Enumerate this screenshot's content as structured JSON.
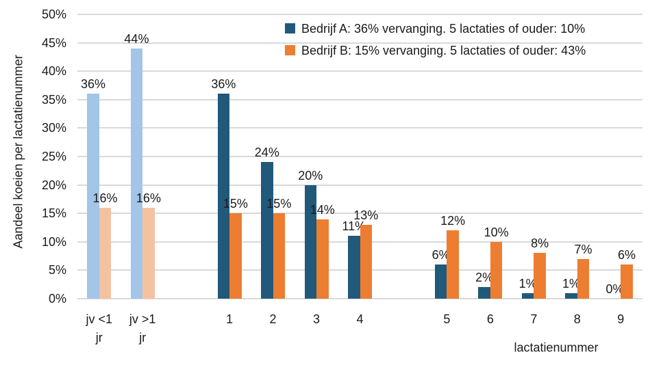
{
  "chart_data": {
    "type": "bar",
    "title": "",
    "ylabel": "Aandeel koeien per lactatienummer",
    "xlabel": "lactatienummer",
    "ylim": [
      0,
      50
    ],
    "ytick_step": 5,
    "ytick_suffix": "%",
    "grid": true,
    "legend_position": "top-right",
    "gridline_color": "#d9d9d9",
    "series": [
      {
        "name": "Bedrijf A: 36% vervanging. 5 lactaties of ouder: 10%",
        "color": "#20597A",
        "light_color": "#A2C5E8"
      },
      {
        "name": "Bedrijf B: 15% vervanging. 5 lactaties of ouder: 43%",
        "color": "#ED7D31",
        "light_color": "#F5C2A0"
      }
    ],
    "groups": [
      {
        "label": "jv <1 jr",
        "label_lines": [
          "jv <1",
          "jr"
        ],
        "slot": 0,
        "youngstock": true,
        "values": [
          36,
          16
        ]
      },
      {
        "label": "jv >1 jr",
        "label_lines": [
          "jv >1",
          "jr"
        ],
        "slot": 1,
        "youngstock": true,
        "values": [
          44,
          16
        ]
      },
      {
        "label": "1",
        "label_lines": [
          "1"
        ],
        "slot": 3,
        "youngstock": false,
        "values": [
          36,
          15
        ]
      },
      {
        "label": "2",
        "label_lines": [
          "2"
        ],
        "slot": 4,
        "youngstock": false,
        "values": [
          24,
          15
        ]
      },
      {
        "label": "3",
        "label_lines": [
          "3"
        ],
        "slot": 5,
        "youngstock": false,
        "values": [
          20,
          14
        ]
      },
      {
        "label": "4",
        "label_lines": [
          "4"
        ],
        "slot": 6,
        "youngstock": false,
        "values": [
          11,
          13
        ]
      },
      {
        "label": "5",
        "label_lines": [
          "5"
        ],
        "slot": 8,
        "youngstock": false,
        "values": [
          6,
          12
        ]
      },
      {
        "label": "6",
        "label_lines": [
          "6"
        ],
        "slot": 9,
        "youngstock": false,
        "values": [
          2,
          10
        ]
      },
      {
        "label": "7",
        "label_lines": [
          "7"
        ],
        "slot": 10,
        "youngstock": false,
        "values": [
          1,
          8
        ]
      },
      {
        "label": "8",
        "label_lines": [
          "8"
        ],
        "slot": 11,
        "youngstock": false,
        "values": [
          1,
          7
        ]
      },
      {
        "label": "9",
        "label_lines": [
          "9"
        ],
        "slot": 12,
        "youngstock": false,
        "values": [
          0,
          6
        ]
      }
    ]
  }
}
